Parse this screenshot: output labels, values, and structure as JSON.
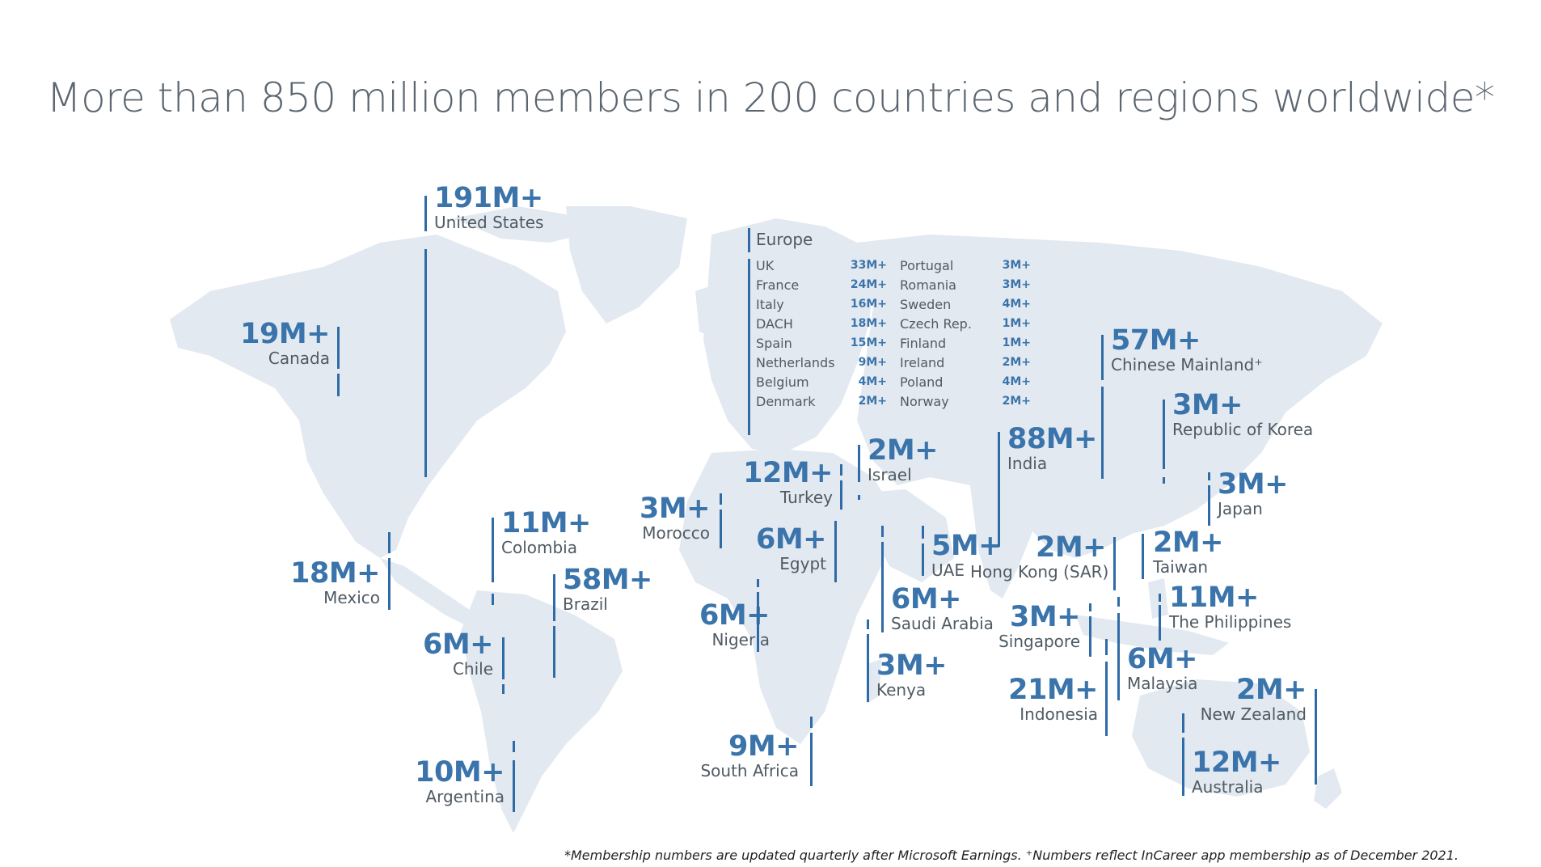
{
  "title": "More than 850 million members in 200 countries and regions worldwide*",
  "footnote": "*Membership numbers are updated quarterly after Microsoft Earnings. ⁺Numbers reflect InCareer app membership as of December 2021.",
  "colors": {
    "accent": "#3a74ab",
    "land": "#e3e9f1",
    "text": "#4f5a63"
  },
  "regions": [
    {
      "name": "United States",
      "value": "191M+"
    },
    {
      "name": "Canada",
      "value": "19M+"
    },
    {
      "name": "Mexico",
      "value": "18M+"
    },
    {
      "name": "Colombia",
      "value": "11M+"
    },
    {
      "name": "Brazil",
      "value": "58M+"
    },
    {
      "name": "Chile",
      "value": "6M+"
    },
    {
      "name": "Argentina",
      "value": "10M+"
    },
    {
      "name": "Morocco",
      "value": "3M+"
    },
    {
      "name": "Turkey",
      "value": "12M+"
    },
    {
      "name": "Israel",
      "value": "2M+"
    },
    {
      "name": "Egypt",
      "value": "6M+"
    },
    {
      "name": "Nigeria",
      "value": "6M+"
    },
    {
      "name": "South Africa",
      "value": "9M+"
    },
    {
      "name": "Saudi Arabia",
      "value": "6M+"
    },
    {
      "name": "Kenya",
      "value": "3M+"
    },
    {
      "name": "UAE",
      "value": "5M+"
    },
    {
      "name": "India",
      "value": "88M+"
    },
    {
      "name": "Chinese Mainland⁺",
      "value": "57M+"
    },
    {
      "name": "Republic of Korea",
      "value": "3M+"
    },
    {
      "name": "Japan",
      "value": "3M+"
    },
    {
      "name": "Hong Kong (SAR)",
      "value": "2M+"
    },
    {
      "name": "Taiwan",
      "value": "2M+"
    },
    {
      "name": "The Philippines",
      "value": "11M+"
    },
    {
      "name": "Singapore",
      "value": "3M+"
    },
    {
      "name": "Malaysia",
      "value": "6M+"
    },
    {
      "name": "Indonesia",
      "value": "21M+"
    },
    {
      "name": "New Zealand",
      "value": "2M+"
    },
    {
      "name": "Australia",
      "value": "12M+"
    }
  ],
  "europe": {
    "heading": "Europe",
    "countries": [
      {
        "name": "UK",
        "value": "33M+"
      },
      {
        "name": "France",
        "value": "24M+"
      },
      {
        "name": "Italy",
        "value": "16M+"
      },
      {
        "name": "DACH",
        "value": "18M+"
      },
      {
        "name": "Spain",
        "value": "15M+"
      },
      {
        "name": "Netherlands",
        "value": "9M+"
      },
      {
        "name": "Belgium",
        "value": "4M+"
      },
      {
        "name": "Denmark",
        "value": "2M+"
      },
      {
        "name": "Portugal",
        "value": "3M+"
      },
      {
        "name": "Romania",
        "value": "3M+"
      },
      {
        "name": "Sweden",
        "value": "4M+"
      },
      {
        "name": "Czech Rep.",
        "value": "1M+"
      },
      {
        "name": "Finland",
        "value": "1M+"
      },
      {
        "name": "Ireland",
        "value": "2M+"
      },
      {
        "name": "Poland",
        "value": "4M+"
      },
      {
        "name": "Norway",
        "value": "2M+"
      }
    ]
  }
}
